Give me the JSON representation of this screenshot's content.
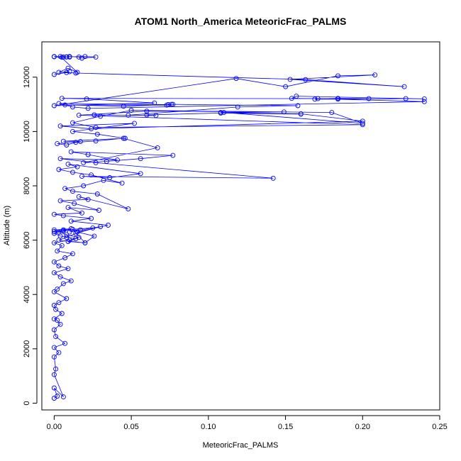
{
  "chart_data": {
    "type": "scatter",
    "title": "ATOM1 North_America MeteoricFrac_PALMS",
    "xlabel": "MeteoricFrac_PALMS",
    "ylabel": "Altitude (m)",
    "xlim": [
      -0.008,
      0.25
    ],
    "ylim": [
      -250,
      13300
    ],
    "x_ticks": [
      0.0,
      0.05,
      0.1,
      0.15,
      0.2,
      0.25
    ],
    "x_tick_labels": [
      "0.00",
      "0.05",
      "0.10",
      "0.15",
      "0.20",
      "0.25"
    ],
    "y_ticks": [
      0,
      2000,
      4000,
      6000,
      8000,
      10000,
      12000
    ],
    "y_tick_labels": [
      "0",
      "2000",
      "4000",
      "6000",
      "8000",
      "10000",
      "12000"
    ],
    "grid": false,
    "legend": "none",
    "marker": "open-circle",
    "connected": true,
    "color": "#0000ff",
    "series": [
      {
        "x": [
          0.0,
          0.002,
          0.0,
          0.006,
          0.0,
          0.001,
          0.0,
          0.003,
          0.0,
          0.007,
          0.001,
          0.0,
          0.004,
          0.002,
          0.0,
          0.005,
          0.001,
          0.0,
          0.003,
          0.008,
          0.0,
          0.002,
          0.006,
          0.011,
          0.004,
          0.0,
          0.009,
          0.003,
          0.0,
          0.007,
          0.012,
          0.002,
          0.005,
          0.0,
          0.01,
          0.016,
          0.008,
          0.003,
          0.0,
          0.011,
          0.006,
          0.0,
          0.004,
          0.014,
          0.009,
          0.02,
          0.012,
          0.025,
          0.006,
          0.0,
          0.017,
          0.01,
          0.03,
          0.014,
          0.008,
          0.003,
          0.02,
          0.026,
          0.015,
          0.035,
          0.011,
          0.024,
          0.006,
          0.0,
          0.018,
          0.009,
          0.029,
          0.013,
          0.004,
          0.022,
          0.016,
          0.048,
          0.028,
          0.012,
          0.007,
          0.019,
          0.032,
          0.044,
          0.024,
          0.012,
          0.003,
          0.015,
          0.009,
          0.056,
          0.036,
          0.018,
          0.142,
          0.027,
          0.004,
          0.041,
          0.022,
          0.011,
          0.077,
          0.056,
          0.034,
          0.019,
          0.067,
          0.045,
          0.027,
          0.014,
          0.008,
          0.002,
          0.017,
          0.006,
          0.046,
          0.028,
          0.012,
          0.052,
          0.004,
          0.024,
          0.2,
          0.16,
          0.108,
          0.149,
          0.06,
          0.016,
          0.2,
          0.027,
          0.012,
          0.03,
          0.05,
          0.18,
          0.2,
          0.11,
          0.16,
          0.108,
          0.06,
          0.066,
          0.026,
          0.048,
          0.119,
          0.158,
          0.076,
          0.073,
          0.007,
          0.045,
          0.077,
          0.074,
          0.003,
          0.012,
          0.022,
          0.24,
          0.171,
          0.154,
          0.157,
          0.24,
          0.228,
          0.184,
          0.169,
          0.184,
          0.204,
          0.005,
          0.021,
          0.065,
          0.0,
          0.118,
          0.15,
          0.184,
          0.208,
          0.153,
          0.227,
          0.163,
          0.014,
          0.008,
          0.0,
          0.01,
          0.003,
          0.009,
          0.015,
          0.004,
          0.008,
          0.0,
          0.005,
          0.01,
          0.016,
          0.018,
          0.027,
          0.02,
          0.008,
          0.01,
          0.0,
          0.006
        ],
        "y": [
          180,
          260,
          560,
          230,
          1050,
          1260,
          1700,
          1860,
          2050,
          2200,
          2450,
          2700,
          2900,
          3050,
          3100,
          3300,
          3450,
          3600,
          3700,
          3850,
          4100,
          4200,
          4400,
          4500,
          4650,
          4800,
          4950,
          5050,
          5200,
          5350,
          5500,
          5600,
          5800,
          5900,
          6000,
          6100,
          6200,
          6300,
          6380,
          6420,
          6350,
          6250,
          6150,
          6050,
          5950,
          5900,
          6400,
          6450,
          6380,
          6320,
          6380,
          6300,
          6500,
          6250,
          6100,
          6000,
          5900,
          6150,
          6300,
          6550,
          6700,
          6800,
          6900,
          6950,
          7000,
          7200,
          7100,
          7350,
          7450,
          7500,
          7600,
          7150,
          7700,
          7800,
          7900,
          8000,
          8200,
          8100,
          8400,
          8500,
          8600,
          8700,
          8800,
          8450,
          8300,
          8350,
          8280,
          8850,
          9000,
          8950,
          9150,
          9250,
          9120,
          9000,
          8900,
          8850,
          9400,
          9750,
          9650,
          9600,
          9500,
          9550,
          9630,
          9640,
          9750,
          9900,
          10000,
          10300,
          10200,
          10100,
          10380,
          10650,
          10700,
          10720,
          10750,
          10600,
          10250,
          10150,
          10320,
          10560,
          10780,
          10700,
          10300,
          10700,
          10640,
          10680,
          10610,
          10590,
          10610,
          10600,
          10900,
          10950,
          11000,
          10970,
          10980,
          10930,
          11000,
          10990,
          11030,
          10900,
          10850,
          11100,
          11210,
          11220,
          11300,
          11200,
          11210,
          11190,
          11190,
          11220,
          11210,
          11220,
          11200,
          11050,
          10950,
          11950,
          11650,
          12050,
          12080,
          11920,
          11650,
          11910,
          12150,
          12170,
          12100,
          12200,
          12180,
          12330,
          12180,
          12760,
          12740,
          12750,
          12730,
          12760,
          12740,
          12700,
          12740,
          12760,
          12750,
          12740,
          12760,
          12740
        ]
      }
    ]
  }
}
